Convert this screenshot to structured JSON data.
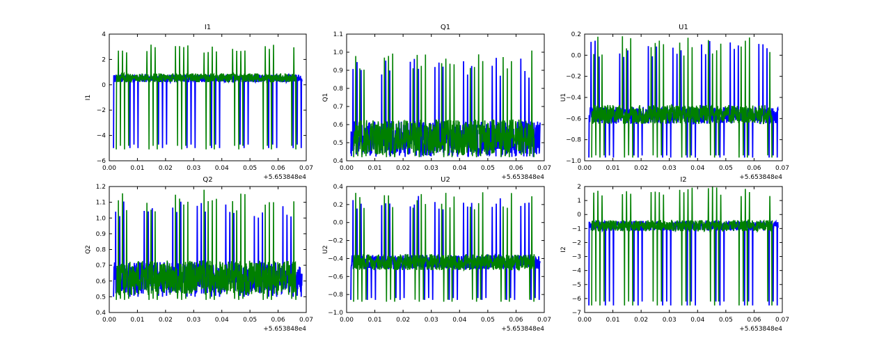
{
  "colors": {
    "green": "#008000",
    "blue": "#0000ff",
    "axes": "#000000"
  },
  "chart_data": [
    {
      "type": "line",
      "title": "I1",
      "xlabel": "",
      "ylabel": "I1",
      "xlim": [
        0.0,
        0.07
      ],
      "ylim": [
        -6,
        4
      ],
      "xticks": [
        "0.00",
        "0.01",
        "0.02",
        "0.03",
        "0.04",
        "0.05",
        "0.06",
        "0.07"
      ],
      "yticks": [
        "−6",
        "−4",
        "−2",
        "0",
        "2",
        "4"
      ],
      "offset_label": "+5.653848e4",
      "series": [
        {
          "color": "blue",
          "x_range": [
            0.0015,
            0.0685
          ],
          "baseline": 0.5,
          "band": 0.3,
          "spike_min": -5.0,
          "spike_max": 0.7
        },
        {
          "color": "green",
          "x_range": [
            0.0025,
            0.0665
          ],
          "baseline": 0.55,
          "band": 0.35,
          "spike_min": -5.1,
          "spike_max": 3.2
        }
      ]
    },
    {
      "type": "line",
      "title": "Q1",
      "xlabel": "",
      "ylabel": "Q1",
      "xlim": [
        0.0,
        0.07
      ],
      "ylim": [
        0.4,
        1.1
      ],
      "xticks": [
        "0.00",
        "0.01",
        "0.02",
        "0.03",
        "0.04",
        "0.05",
        "0.06",
        "0.07"
      ],
      "yticks": [
        "0.4",
        "0.5",
        "0.6",
        "0.7",
        "0.8",
        "0.9",
        "1.0",
        "1.1"
      ],
      "offset_label": "+5.653848e4",
      "series": [
        {
          "color": "blue",
          "x_range": [
            0.0015,
            0.0685
          ],
          "baseline": 0.52,
          "band": 0.1,
          "spike_min": 0.44,
          "spike_max": 0.97
        },
        {
          "color": "green",
          "x_range": [
            0.0025,
            0.0665
          ],
          "baseline": 0.53,
          "band": 0.1,
          "spike_min": 0.42,
          "spike_max": 1.02
        }
      ]
    },
    {
      "type": "line",
      "title": "U1",
      "xlabel": "",
      "ylabel": "U1",
      "xlim": [
        0.0,
        0.07
      ],
      "ylim": [
        -1.0,
        0.2
      ],
      "xticks": [
        "0.00",
        "0.01",
        "0.02",
        "0.03",
        "0.04",
        "0.05",
        "0.06",
        "0.07"
      ],
      "yticks": [
        "−1.0",
        "−0.8",
        "−0.6",
        "−0.4",
        "−0.2",
        "0.0",
        "0.2"
      ],
      "offset_label": "+5.653848e4",
      "series": [
        {
          "color": "blue",
          "x_range": [
            0.0015,
            0.0685
          ],
          "baseline": -0.57,
          "band": 0.08,
          "spike_min": -0.97,
          "spike_max": 0.15
        },
        {
          "color": "green",
          "x_range": [
            0.0025,
            0.0665
          ],
          "baseline": -0.56,
          "band": 0.09,
          "spike_min": -0.97,
          "spike_max": 0.18
        }
      ]
    },
    {
      "type": "line",
      "title": "Q2",
      "xlabel": "",
      "ylabel": "Q2",
      "xlim": [
        0.0,
        0.07
      ],
      "ylim": [
        0.4,
        1.2
      ],
      "xticks": [
        "0.00",
        "0.01",
        "0.02",
        "0.03",
        "0.04",
        "0.05",
        "0.06",
        "0.07"
      ],
      "yticks": [
        "0.4",
        "0.5",
        "0.6",
        "0.7",
        "0.8",
        "0.9",
        "1.0",
        "1.1",
        "1.2"
      ],
      "offset_label": "+5.653848e4",
      "series": [
        {
          "color": "blue",
          "x_range": [
            0.0015,
            0.0685
          ],
          "baseline": 0.62,
          "band": 0.1,
          "spike_min": 0.5,
          "spike_max": 1.13
        },
        {
          "color": "green",
          "x_range": [
            0.0025,
            0.0665
          ],
          "baseline": 0.62,
          "band": 0.11,
          "spike_min": 0.48,
          "spike_max": 1.18
        }
      ]
    },
    {
      "type": "line",
      "title": "U2",
      "xlabel": "",
      "ylabel": "U2",
      "xlim": [
        0.0,
        0.07
      ],
      "ylim": [
        -1.0,
        0.4
      ],
      "xticks": [
        "0.00",
        "0.01",
        "0.02",
        "0.03",
        "0.04",
        "0.05",
        "0.06",
        "0.07"
      ],
      "yticks": [
        "−1.0",
        "−0.8",
        "−0.6",
        "−0.4",
        "−0.2",
        "0.0",
        "0.2",
        "0.4"
      ],
      "offset_label": "+5.653848e4",
      "series": [
        {
          "color": "blue",
          "x_range": [
            0.0015,
            0.0685
          ],
          "baseline": -0.44,
          "band": 0.08,
          "spike_min": -0.86,
          "spike_max": 0.3
        },
        {
          "color": "green",
          "x_range": [
            0.0025,
            0.0665
          ],
          "baseline": -0.44,
          "band": 0.09,
          "spike_min": -0.88,
          "spike_max": 0.34
        }
      ]
    },
    {
      "type": "line",
      "title": "I2",
      "xlabel": "",
      "ylabel": "I2",
      "xlim": [
        0.0,
        0.07
      ],
      "ylim": [
        -7,
        2
      ],
      "xticks": [
        "0.00",
        "0.01",
        "0.02",
        "0.03",
        "0.04",
        "0.05",
        "0.06",
        "0.07"
      ],
      "yticks": [
        "−7",
        "−6",
        "−5",
        "−4",
        "−3",
        "−2",
        "−1",
        "0",
        "1",
        "2"
      ],
      "offset_label": "+5.653848e4",
      "series": [
        {
          "color": "blue",
          "x_range": [
            0.0015,
            0.0685
          ],
          "baseline": -0.8,
          "band": 0.35,
          "spike_min": -6.5,
          "spike_max": -0.6
        },
        {
          "color": "green",
          "x_range": [
            0.0025,
            0.0665
          ],
          "baseline": -0.8,
          "band": 0.4,
          "spike_min": -6.5,
          "spike_max": 2.0
        }
      ]
    }
  ]
}
